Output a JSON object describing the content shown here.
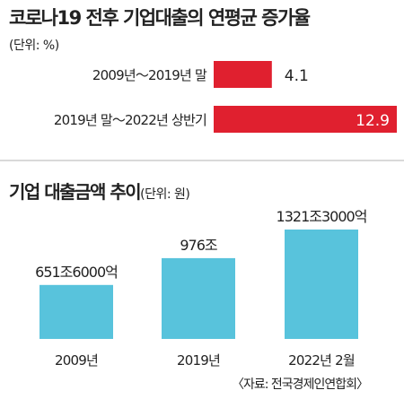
{
  "colors": {
    "hbar": "#e0202f",
    "vbar": "#58c3dc",
    "divider": "#d9d9d9",
    "text": "#222222"
  },
  "chart_data": [
    {
      "type": "bar",
      "orientation": "horizontal",
      "title": "코로나19 전후 기업대출의 연평균 증가율",
      "unit": "(단위: %)",
      "categories": [
        "2009년～2019년 말",
        "2019년 말～2022년 상반기"
      ],
      "values": [
        4.1,
        12.9
      ],
      "value_labels": [
        "4.1",
        "12.9"
      ],
      "xlim": [
        0,
        12.9
      ]
    },
    {
      "type": "bar",
      "orientation": "vertical",
      "title": "기업 대출금액 추이",
      "unit": "(단위: 원)",
      "categories": [
        "2009년",
        "2019년",
        "2022년 2월"
      ],
      "values": [
        651.6,
        976,
        1321.3
      ],
      "value_labels": [
        "651조6000억",
        "976조",
        "1321조3000억"
      ],
      "ylim": [
        0,
        1321.3
      ]
    }
  ],
  "source": "〈자료: 전국경제인연합회〉"
}
